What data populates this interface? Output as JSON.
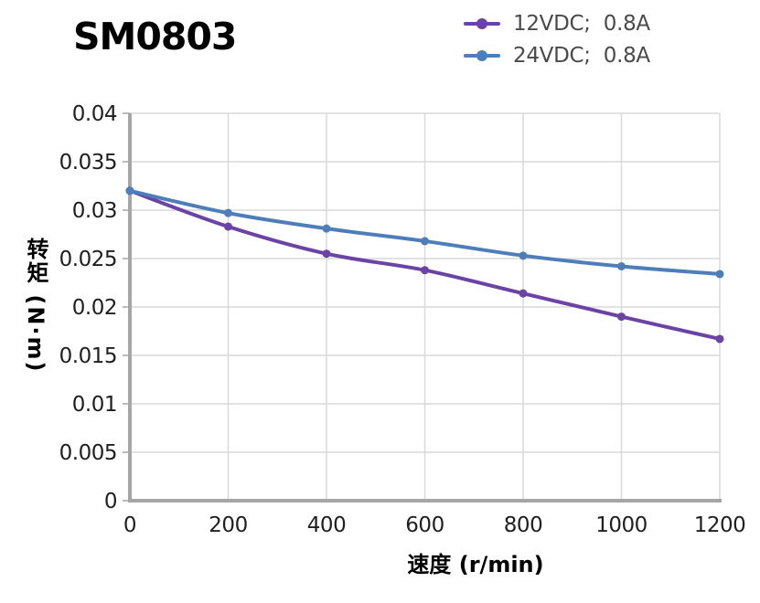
{
  "page_title": "SM0803",
  "legend": {
    "items": [
      {
        "label": "12VDC;  0.8A",
        "color": "#6B43A4"
      },
      {
        "label": "24VDC;  0.8A",
        "color": "#4D7EB9"
      }
    ]
  },
  "chart_data": {
    "type": "line",
    "title": "SM0803",
    "xlabel": "速度 (r/min)",
    "ylabel": "转矩 (N·m)",
    "xlim": [
      0,
      1200
    ],
    "ylim": [
      0,
      0.04
    ],
    "x_ticks": [
      0,
      200,
      400,
      600,
      800,
      1000,
      1200
    ],
    "y_ticks": [
      0,
      0.005,
      0.01,
      0.015,
      0.02,
      0.025,
      0.03,
      0.035,
      0.04
    ],
    "grid": true,
    "legend_position": "top-right",
    "x": [
      0,
      200,
      400,
      600,
      800,
      1000,
      1200
    ],
    "series": [
      {
        "name": "12VDC;  0.8A",
        "color": "#6B43A4",
        "values": [
          0.032,
          0.0283,
          0.0255,
          0.0238,
          0.0214,
          0.019,
          0.0167
        ]
      },
      {
        "name": "24VDC;  0.8A",
        "color": "#4D7EB9",
        "values": [
          0.032,
          0.0297,
          0.0281,
          0.0268,
          0.0253,
          0.0242,
          0.0234
        ]
      }
    ],
    "colors": {
      "axis": "#A6A6A6",
      "gridline": "#D9D9D9",
      "tick_text": "#1F1F1F",
      "title_text": "#000000",
      "legend_text": "#4A4A4A"
    }
  }
}
